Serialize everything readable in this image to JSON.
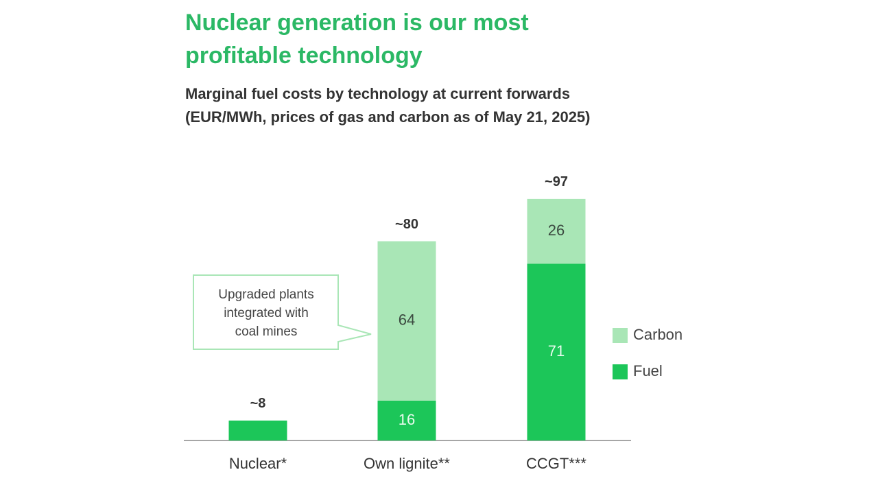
{
  "chart_data": {
    "type": "stacked_bar",
    "title": "Nuclear generation is our most profitable technology",
    "subtitle": [
      "Marginal fuel costs by technology at current forwards",
      "(EUR/MWh, prices of gas and carbon as of May 21, 2025)"
    ],
    "categories": [
      "Nuclear*",
      "Own lignite**",
      "CCGT***"
    ],
    "series": [
      {
        "name": "Fuel",
        "color": "#1cc659",
        "values": [
          8,
          16,
          71
        ]
      },
      {
        "name": "Carbon",
        "color": "#a9e6b6",
        "values": [
          null,
          64,
          26
        ]
      }
    ],
    "totals": [
      8,
      80,
      97
    ],
    "total_labels": [
      "~8",
      "~80",
      "~97"
    ],
    "ylim": [
      0,
      100
    ],
    "annotation": {
      "lines": [
        "Upgraded plants",
        "integrated with",
        "coal mines"
      ]
    }
  }
}
